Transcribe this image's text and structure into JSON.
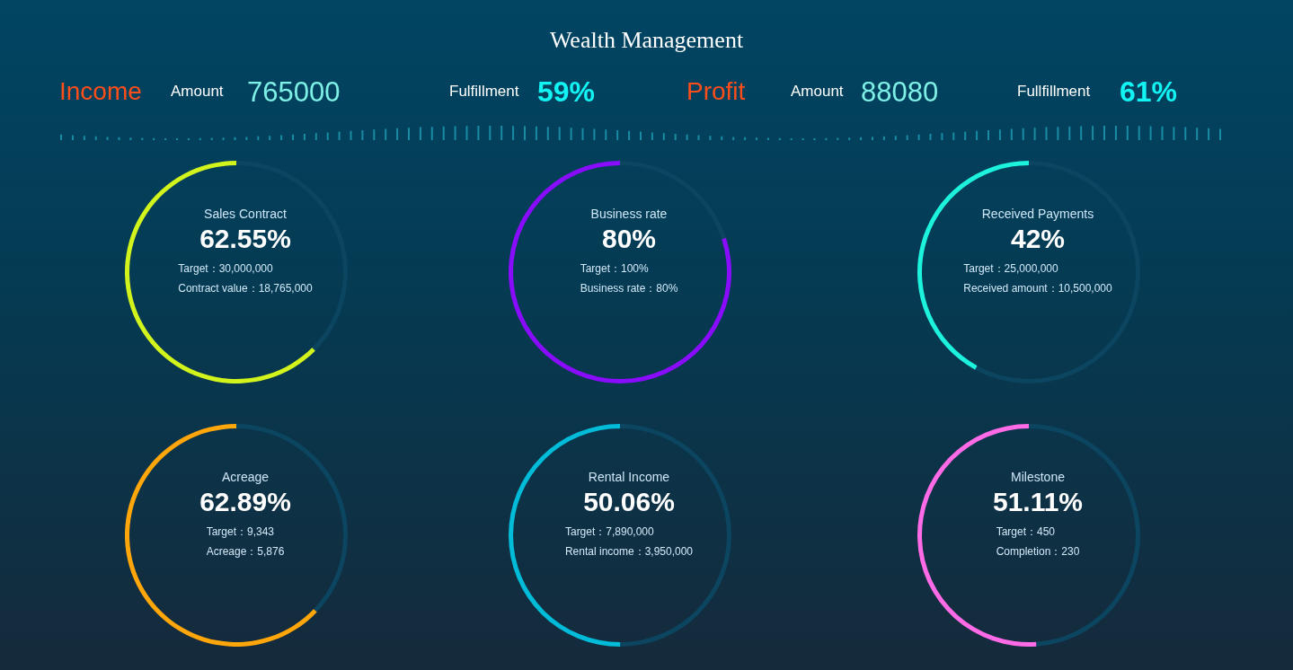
{
  "chart_data": [
    {
      "type": "other",
      "title": "Wealth Management",
      "annotations": [
        "Income",
        "Amount",
        "765000",
        "Fulfillment",
        "59%",
        "Profit",
        "Amount",
        "88080",
        "Fullfillment",
        "61%"
      ]
    },
    {
      "type": "donut",
      "title": "Sales Contract",
      "categories": [
        null,
        null
      ],
      "values": [
        62.55,
        37.45
      ],
      "colors": [
        "#d2f41c",
        "#0c4560"
      ],
      "annotations": [
        "62.55%",
        "Target：30,000,000",
        "Contract value：18,765,000"
      ]
    },
    {
      "type": "donut",
      "title": "Business rate",
      "categories": [
        null,
        null
      ],
      "values": [
        80,
        20
      ],
      "colors": [
        "#8a0cff",
        "#0c4560"
      ],
      "annotations": [
        "80%",
        "Target：100%",
        "Business rate：80%"
      ]
    },
    {
      "type": "donut",
      "title": "Received Payments",
      "categories": [
        null,
        null
      ],
      "values": [
        42,
        58
      ],
      "colors": [
        "#1cf2dc",
        "#0c4560"
      ],
      "annotations": [
        "42%",
        "Target：25,000,000",
        "Received amount：10,500,000"
      ]
    },
    {
      "type": "donut",
      "title": "Acreage",
      "categories": [
        null,
        null
      ],
      "values": [
        62.89,
        37.11
      ],
      "colors": [
        "#ffa60a",
        "#0c4560"
      ],
      "annotations": [
        "62.89%",
        "Target：9,343",
        "Acreage：5,876"
      ]
    },
    {
      "type": "donut",
      "title": "Rental Income",
      "categories": [
        null,
        null
      ],
      "values": [
        50.06,
        49.94
      ],
      "colors": [
        "#00bcd8",
        "#0c4560"
      ],
      "annotations": [
        "50.06%",
        "Target：7,890,000",
        "Rental income：3,950,000"
      ]
    },
    {
      "type": "donut",
      "title": "Milestone",
      "categories": [
        null,
        null
      ],
      "values": [
        51.11,
        48.89
      ],
      "colors": [
        "#ff6ae6",
        "#0c4560"
      ],
      "annotations": [
        "51.11%",
        "Target：450",
        "Completion：230"
      ]
    }
  ]
}
